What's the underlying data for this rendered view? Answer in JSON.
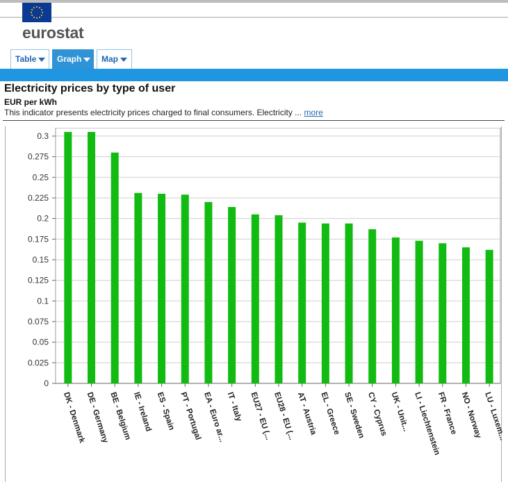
{
  "header": {
    "logo_text": "eurostat",
    "tabs": [
      {
        "label": "Table",
        "active": false
      },
      {
        "label": "Graph",
        "active": true
      },
      {
        "label": "Map",
        "active": false
      }
    ]
  },
  "indicator": {
    "title": "Electricity prices by type of user",
    "unit": "EUR per kWh",
    "description": "This indicator presents electricity prices charged to final consumers. Electricity ...",
    "more_label": "more"
  },
  "colors": {
    "bar": "#11bb11",
    "tab_active": "#2f93d6",
    "blue_bar": "#2196e0"
  },
  "chart_data": {
    "type": "bar",
    "title": "Electricity prices by type of user",
    "ylabel": "EUR per kWh",
    "xlabel": "",
    "ylim": [
      0,
      0.3
    ],
    "yticks": [
      "0",
      "0.025",
      "0.05",
      "0.075",
      "0.1",
      "0.125",
      "0.15",
      "0.175",
      "0.2",
      "0.225",
      "0.25",
      "0.275",
      "0.3"
    ],
    "grid": true,
    "categories": [
      "DK - Denmark",
      "DE - Germany",
      "BE - Belgium",
      "IE - Ireland",
      "ES - Spain",
      "PT - Portugal",
      "EA - Euro ar...",
      "IT - Italy",
      "EU27 - EU (...",
      "EU28 - EU (...",
      "AT - Austria",
      "EL - Greece",
      "SE - Sweden",
      "CY - Cyprus",
      "UK - Unit...",
      "LI - Liechtenstein",
      "FR - France",
      "NO - Norway",
      "LU - Luxem..."
    ],
    "values": [
      0.305,
      0.305,
      0.28,
      0.231,
      0.23,
      0.229,
      0.22,
      0.214,
      0.205,
      0.204,
      0.195,
      0.194,
      0.194,
      0.187,
      0.177,
      0.173,
      0.17,
      0.165,
      0.162
    ]
  }
}
